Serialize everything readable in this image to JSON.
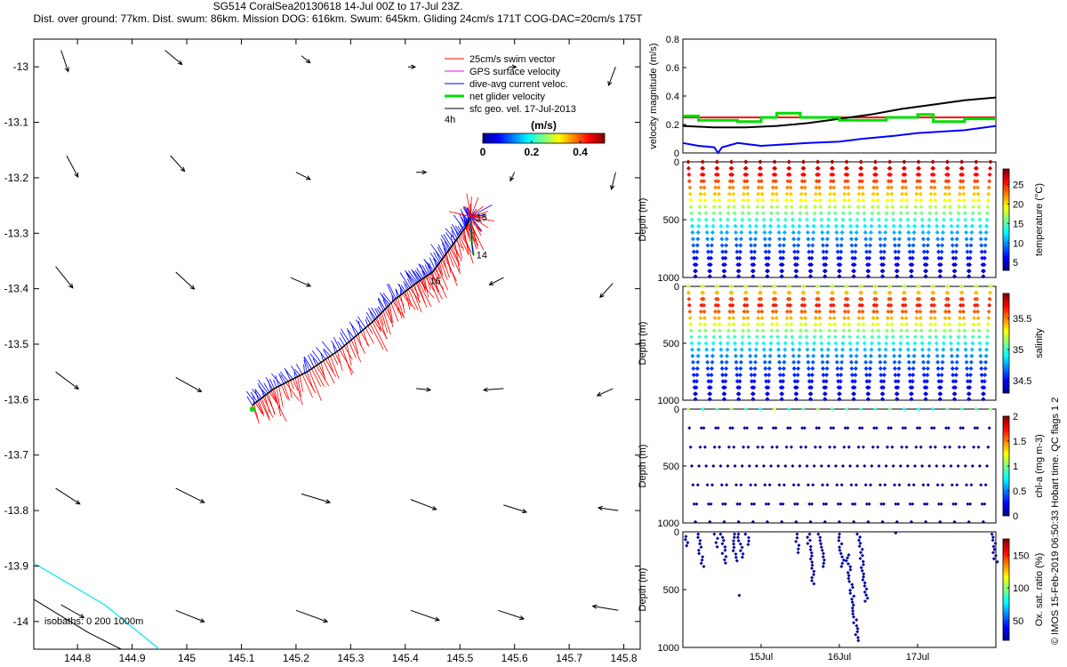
{
  "header": {
    "title_line1": "SG514 CoralSea20130618 14-Jul 00Z to 17-Jul 23Z.",
    "title_line2": "Dist. over ground: 77km. Dist. swum: 86km. Mission DOG: 616km. Swum: 645km. Gliding 24cm/s 171T COG-DAC=20cm/s 175T"
  },
  "side_credit": "© IMOS 15-Feb-2019 06:50:33 Hobart time. QC flags 1  2",
  "colors": {
    "swim": "#ff0000",
    "gps": "#ff00ff",
    "dac": "#0000ff",
    "net": "#00dd00",
    "geo": "#000000",
    "iso0": "#000000",
    "iso1000": "#00e5ee"
  },
  "chart_data": [
    {
      "type": "scatter",
      "name": "map",
      "xlim": [
        144.72,
        145.83
      ],
      "ylim": [
        -14.05,
        -12.95
      ],
      "xticks": [
        144.8,
        144.9,
        145,
        145.1,
        145.2,
        145.3,
        145.4,
        145.5,
        145.6,
        145.7,
        145.8
      ],
      "xtick_labels": [
        "144.8",
        "144.9",
        "145",
        "145.1",
        "145.2",
        "145.3",
        "145.4",
        "145.5",
        "145.6",
        "145.7",
        "145.8"
      ],
      "yticks": [
        -13,
        -13.1,
        -13.2,
        -13.3,
        -13.4,
        -13.5,
        -13.6,
        -13.7,
        -13.8,
        -13.9,
        -14
      ],
      "ytick_labels": [
        "-13",
        "-13.1",
        "-13.2",
        "-13.3",
        "-13.4",
        "-13.5",
        "-13.6",
        "-13.7",
        "-13.8",
        "-13.9",
        "-14"
      ],
      "legend": {
        "placement": "top-right",
        "items": [
          {
            "label": "25cm/s swim vector",
            "color": "#ff0000"
          },
          {
            "label": "GPS surface velocity",
            "color": "#ff00ff"
          },
          {
            "label": "dive-avg current veloc.",
            "color": "#0000ff"
          },
          {
            "label": "net glider velocity",
            "color": "#00dd00"
          },
          {
            "label": "sfc geo. vel. 17-Jul-2013",
            "color": "#000000"
          }
        ],
        "note": "4h"
      },
      "colorbar": {
        "title": "(m/s)",
        "ticks": [
          0,
          0.2,
          0.4
        ],
        "tick_labels": [
          "0",
          "0.2",
          "0.4"
        ],
        "range": [
          0,
          0.5
        ]
      },
      "track": [
        [
          145.12,
          -13.61
        ],
        [
          145.16,
          -13.58
        ],
        [
          145.22,
          -13.55
        ],
        [
          145.28,
          -13.51
        ],
        [
          145.34,
          -13.46
        ],
        [
          145.38,
          -13.42
        ],
        [
          145.42,
          -13.39
        ],
        [
          145.45,
          -13.37
        ],
        [
          145.48,
          -13.33
        ],
        [
          145.51,
          -13.29
        ],
        [
          145.52,
          -13.27
        ]
      ],
      "track_start": [
        145.12,
        -13.617
      ],
      "hook": [
        [
          145.52,
          -13.27
        ],
        [
          145.522,
          -13.32
        ],
        [
          145.525,
          -13.34
        ]
      ],
      "day_labels": [
        {
          "label": "15",
          "x": 145.53,
          "y": -13.277
        },
        {
          "label": "14",
          "x": 145.53,
          "y": -13.345
        },
        {
          "label": "16",
          "x": 145.445,
          "y": -13.392
        }
      ],
      "geo_vectors": [
        {
          "x": 144.77,
          "y": -12.97,
          "u": 0.05,
          "v": -0.15
        },
        {
          "x": 144.96,
          "y": -12.97,
          "u": 0.12,
          "v": -0.1
        },
        {
          "x": 145.21,
          "y": -12.98,
          "u": 0.06,
          "v": -0.05
        },
        {
          "x": 145.405,
          "y": -13.0,
          "u": 0.05,
          "v": 0.0
        },
        {
          "x": 145.59,
          "y": -13.0,
          "u": 0.05,
          "v": 0.0
        },
        {
          "x": 145.785,
          "y": -13.0,
          "u": -0.05,
          "v": -0.13
        },
        {
          "x": 144.78,
          "y": -13.16,
          "u": 0.08,
          "v": -0.15
        },
        {
          "x": 144.97,
          "y": -13.16,
          "u": 0.1,
          "v": -0.11
        },
        {
          "x": 145.2,
          "y": -13.19,
          "u": 0.1,
          "v": -0.05
        },
        {
          "x": 145.42,
          "y": -13.19,
          "u": 0.07,
          "v": 0.0
        },
        {
          "x": 145.6,
          "y": -13.19,
          "u": -0.03,
          "v": -0.06
        },
        {
          "x": 145.785,
          "y": -13.19,
          "u": -0.03,
          "v": -0.12
        },
        {
          "x": 144.76,
          "y": -13.36,
          "u": 0.12,
          "v": -0.15
        },
        {
          "x": 144.98,
          "y": -13.37,
          "u": 0.13,
          "v": -0.12
        },
        {
          "x": 145.19,
          "y": -13.38,
          "u": 0.14,
          "v": -0.06
        },
        {
          "x": 145.58,
          "y": -13.38,
          "u": -0.1,
          "v": -0.05
        },
        {
          "x": 145.78,
          "y": -13.39,
          "u": -0.09,
          "v": -0.1
        },
        {
          "x": 144.76,
          "y": -13.55,
          "u": 0.16,
          "v": -0.12
        },
        {
          "x": 144.98,
          "y": -13.56,
          "u": 0.18,
          "v": -0.1
        },
        {
          "x": 145.42,
          "y": -13.58,
          "u": 0.1,
          "v": -0.01
        },
        {
          "x": 145.58,
          "y": -13.58,
          "u": -0.14,
          "v": -0.01
        },
        {
          "x": 145.78,
          "y": -13.58,
          "u": -0.11,
          "v": -0.05
        },
        {
          "x": 144.76,
          "y": -13.76,
          "u": 0.17,
          "v": -0.11
        },
        {
          "x": 144.98,
          "y": -13.76,
          "u": 0.2,
          "v": -0.1
        },
        {
          "x": 145.21,
          "y": -13.77,
          "u": 0.2,
          "v": -0.06
        },
        {
          "x": 145.41,
          "y": -13.78,
          "u": 0.18,
          "v": -0.07
        },
        {
          "x": 145.58,
          "y": -13.79,
          "u": 0.16,
          "v": -0.05
        },
        {
          "x": 145.79,
          "y": -13.8,
          "u": -0.14,
          "v": 0.02
        },
        {
          "x": 144.77,
          "y": -13.97,
          "u": 0.16,
          "v": -0.09
        },
        {
          "x": 144.98,
          "y": -13.98,
          "u": 0.2,
          "v": -0.08
        },
        {
          "x": 145.2,
          "y": -13.98,
          "u": 0.22,
          "v": -0.08
        },
        {
          "x": 145.41,
          "y": -13.98,
          "u": 0.2,
          "v": -0.07
        },
        {
          "x": 145.57,
          "y": -13.98,
          "u": 0.18,
          "v": -0.06
        },
        {
          "x": 145.79,
          "y": -13.98,
          "u": -0.18,
          "v": 0.03
        }
      ],
      "isobaths": {
        "label": "isobaths: 0   200  1000m",
        "iso_0": [
          [
            144.72,
            -13.96
          ],
          [
            144.82,
            -14.02
          ],
          [
            144.88,
            -14.05
          ]
        ],
        "iso_1000": [
          [
            144.72,
            -13.895
          ],
          [
            144.85,
            -13.97
          ],
          [
            144.95,
            -14.05
          ]
        ]
      }
    },
    {
      "type": "line",
      "name": "velocity",
      "ylabel": "velocity magnitude (m/s)",
      "ylim": [
        0,
        0.8
      ],
      "yticks": [
        0,
        0.2,
        0.4,
        0.6,
        0.8
      ],
      "ytick_labels": [
        "0",
        "0.2",
        "0.4",
        "0.6",
        "0.8"
      ],
      "xlim": [
        14.0,
        18.0
      ],
      "series": [
        {
          "color": "#ff0000",
          "x": [
            14.0,
            18.0
          ],
          "y": [
            0.25,
            0.25
          ]
        },
        {
          "color": "#000000",
          "x": [
            14.0,
            14.4,
            14.8,
            15.2,
            15.6,
            16.0,
            16.4,
            16.8,
            17.2,
            17.6,
            18.0
          ],
          "y": [
            0.19,
            0.18,
            0.18,
            0.19,
            0.21,
            0.24,
            0.27,
            0.31,
            0.34,
            0.37,
            0.39
          ]
        },
        {
          "color": "#0000ff",
          "x": [
            14.0,
            14.2,
            14.4,
            14.45,
            14.5,
            14.7,
            15.0,
            15.3,
            15.6,
            16.0,
            16.3,
            16.7,
            17.0,
            17.3,
            17.6,
            18.0
          ],
          "y": [
            0.07,
            0.05,
            0.04,
            0.0,
            0.04,
            0.07,
            0.05,
            0.06,
            0.07,
            0.08,
            0.1,
            0.12,
            0.14,
            0.15,
            0.16,
            0.19
          ]
        },
        {
          "color": "#00dd00",
          "x": [
            14.0,
            14.2,
            14.2,
            14.7,
            14.7,
            15.0,
            15.0,
            15.2,
            15.2,
            15.5,
            15.5,
            16.0,
            16.0,
            16.6,
            16.6,
            17.0,
            17.0,
            17.2,
            17.2,
            17.6,
            17.6,
            18.0
          ],
          "y": [
            0.26,
            0.26,
            0.23,
            0.23,
            0.22,
            0.22,
            0.25,
            0.25,
            0.28,
            0.28,
            0.25,
            0.25,
            0.23,
            0.23,
            0.25,
            0.25,
            0.27,
            0.27,
            0.22,
            0.22,
            0.24,
            0.24
          ]
        }
      ]
    },
    {
      "type": "scatter",
      "name": "temperature",
      "ylabel": "Depth (m)",
      "clabel": "temperature (°C)",
      "ylim": [
        1000,
        0
      ],
      "yticks": [
        0,
        500,
        1000
      ],
      "ytick_labels": [
        "0",
        "500",
        "1000"
      ],
      "crange": [
        3,
        29
      ],
      "cticks": [
        5,
        10,
        15,
        20,
        25
      ],
      "ctick_labels": [
        "5",
        "10",
        "15",
        "20",
        "25"
      ],
      "dives": 21,
      "max_depth": 1000,
      "profile": [
        [
          0,
          28
        ],
        [
          100,
          26
        ],
        [
          200,
          23
        ],
        [
          300,
          20
        ],
        [
          400,
          17
        ],
        [
          500,
          14
        ],
        [
          600,
          11
        ],
        [
          700,
          9
        ],
        [
          800,
          7
        ],
        [
          900,
          5.5
        ],
        [
          1000,
          4.5
        ]
      ]
    },
    {
      "type": "scatter",
      "name": "salinity",
      "ylabel": "Depth (m)",
      "clabel": "salinity",
      "ylim": [
        1000,
        0
      ],
      "yticks": [
        0,
        500,
        1000
      ],
      "ytick_labels": [
        "0",
        "500",
        "1000"
      ],
      "crange": [
        34.3,
        35.9
      ],
      "cticks": [
        34.5,
        35,
        35.5
      ],
      "ctick_labels": [
        "34.5",
        "35",
        "35.5"
      ],
      "dives": 21,
      "max_depth": 1000,
      "profile": [
        [
          0,
          35.2
        ],
        [
          80,
          35.5
        ],
        [
          150,
          35.7
        ],
        [
          250,
          35.5
        ],
        [
          350,
          35.2
        ],
        [
          450,
          35.0
        ],
        [
          550,
          34.8
        ],
        [
          700,
          34.6
        ],
        [
          850,
          34.5
        ],
        [
          1000,
          34.45
        ]
      ]
    },
    {
      "type": "scatter",
      "name": "chlorophyll",
      "ylabel": "Depth (m)",
      "clabel": "chl-a (mg m-3)",
      "ylim": [
        1000,
        0
      ],
      "yticks": [
        0,
        500,
        1000
      ],
      "ytick_labels": [
        "0",
        "500",
        "1000"
      ],
      "crange": [
        0,
        2
      ],
      "cticks": [
        0,
        0.5,
        1,
        1.5,
        2
      ],
      "ctick_labels": [
        "0",
        "0.5",
        "1",
        "1.5",
        "2"
      ],
      "dives": 21,
      "max_depth": 1000
    },
    {
      "type": "scatter",
      "name": "oxygen",
      "ylabel": "Depth (m)",
      "clabel": "Ox. sat. ratio (%)",
      "ylim": [
        1000,
        0
      ],
      "yticks": [
        0,
        500,
        1000
      ],
      "ytick_labels": [
        "0",
        "500",
        "1000"
      ],
      "crange": [
        20,
        175
      ],
      "cticks": [
        50,
        100,
        150
      ],
      "ctick_labels": [
        "50",
        "100",
        "150"
      ],
      "xlim": [
        14.0,
        18.0
      ],
      "xticks": [
        15.0,
        16.0,
        17.0
      ],
      "xtick_labels": [
        "15Jul",
        "16Jul",
        "17Jul"
      ],
      "clusters": [
        {
          "x": 14.04,
          "top": 40,
          "bottom": 120
        },
        {
          "x": 14.2,
          "top": 20,
          "bottom": 300
        },
        {
          "x": 14.42,
          "top": 20,
          "bottom": 130
        },
        {
          "x": 14.5,
          "top": 20,
          "bottom": 270
        },
        {
          "x": 14.64,
          "top": 20,
          "bottom": 250
        },
        {
          "x": 14.72,
          "top": 20,
          "bottom": 220
        },
        {
          "x": 14.82,
          "top": 20,
          "bottom": 110
        },
        {
          "x": 15.45,
          "top": 20,
          "bottom": 180
        },
        {
          "x": 15.6,
          "top": 20,
          "bottom": 450
        },
        {
          "x": 15.75,
          "top": 20,
          "bottom": 300
        },
        {
          "x": 16.0,
          "top": 20,
          "bottom": 300
        },
        {
          "x": 16.1,
          "top": 200,
          "bottom": 940
        },
        {
          "x": 16.25,
          "top": 20,
          "bottom": 600
        },
        {
          "x": 17.96,
          "top": 20,
          "bottom": 260
        }
      ],
      "isolated_points": [
        [
          14.72,
          550
        ],
        [
          16.72,
          10
        ]
      ]
    }
  ]
}
